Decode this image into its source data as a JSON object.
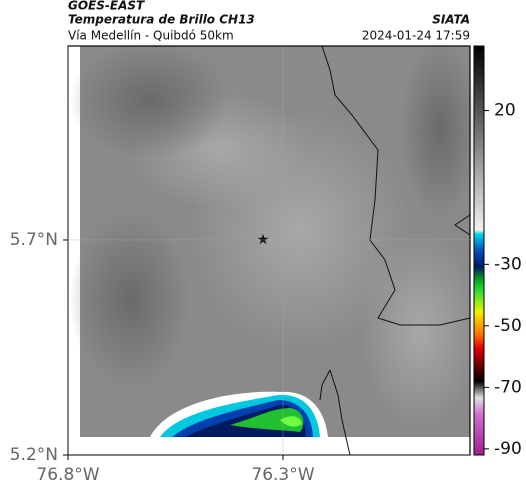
{
  "header": {
    "source": "GOES-EAST",
    "title": "Temperatura de Brillo CH13",
    "subtitle": "Vía Medellín - Quibdó 50km",
    "agency": "SIATA",
    "timestamp": "2024-01-24 17:59"
  },
  "map": {
    "latlim": [
      5.2,
      6.151
    ],
    "lonlim": [
      -76.8,
      -75.865
    ],
    "lat_ticks": [
      {
        "value": 5.7,
        "label": "5.7°N"
      },
      {
        "value": 5.2,
        "label": "5.2°N"
      }
    ],
    "lon_ticks": [
      {
        "value": -76.8,
        "label": "76.8°W"
      },
      {
        "value": -76.3,
        "label": "76.3°W"
      }
    ],
    "colorbar": {
      "lim": [
        -92,
        41
      ],
      "ticks": [
        20,
        -30,
        -50,
        -70,
        -90
      ]
    }
  }
}
